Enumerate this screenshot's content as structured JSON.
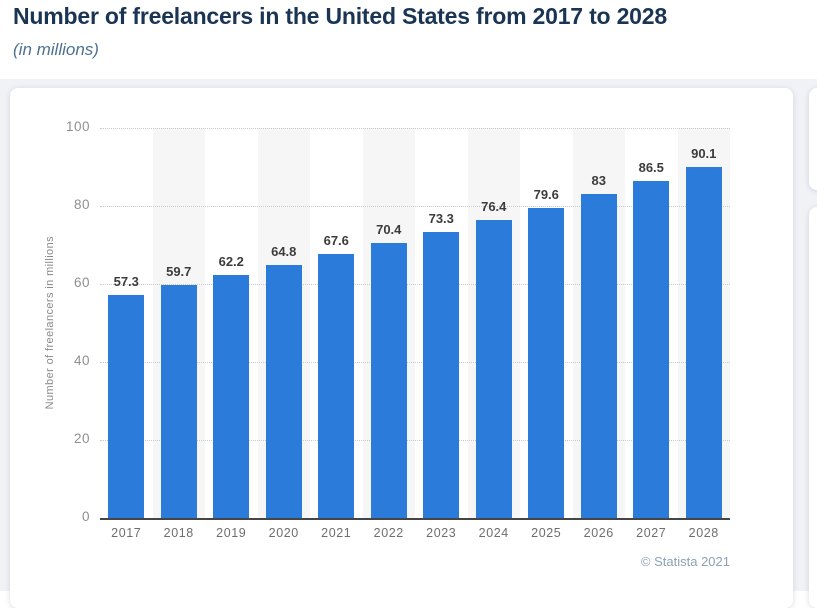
{
  "page": {
    "title": "Number of freelancers in the United States from 2017 to 2028",
    "subtitle": "(in millions)",
    "credit": "© Statista 2021"
  },
  "chart_data": {
    "type": "bar",
    "title": "Number of freelancers in the United States from 2017 to 2028",
    "subtitle": "(in millions)",
    "categories": [
      "2017",
      "2018",
      "2019",
      "2020",
      "2021",
      "2022",
      "2023",
      "2024",
      "2025",
      "2026",
      "2027",
      "2028"
    ],
    "values": [
      57.3,
      59.7,
      62.2,
      64.8,
      67.6,
      70.4,
      73.3,
      76.4,
      79.6,
      83,
      86.5,
      90.1
    ],
    "xlabel": "",
    "ylabel": "Number of freelancers in millions",
    "ylim": [
      0,
      100
    ],
    "yticks": [
      0,
      20,
      40,
      60,
      80,
      100
    ],
    "grid": "horizontal-dotted",
    "legend": false,
    "bar_color": "#2b7bdb",
    "band_color": "#f6f6f6",
    "value_label_color": "#3c3c3c",
    "credit": "© Statista 2021"
  }
}
